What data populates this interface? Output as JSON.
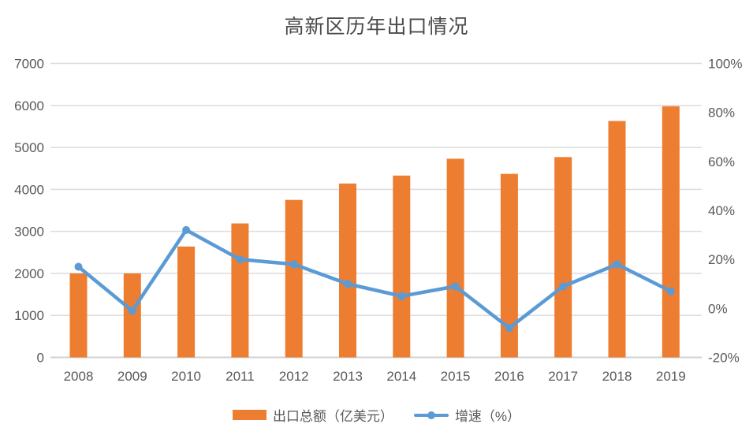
{
  "chart_data": {
    "type": "bar",
    "subtype": "combo-bar-line",
    "title": "高新区历年出口情况",
    "categories": [
      "2008",
      "2009",
      "2010",
      "2011",
      "2012",
      "2013",
      "2014",
      "2015",
      "2016",
      "2017",
      "2018",
      "2019"
    ],
    "series": [
      {
        "name": "出口总额（亿美元）",
        "type": "bar",
        "axis": "left",
        "color": "#ED7D31",
        "values": [
          2000,
          2000,
          2640,
          3190,
          3750,
          4140,
          4330,
          4730,
          4370,
          4770,
          5630,
          5980
        ]
      },
      {
        "name": "增速（%）",
        "type": "line",
        "axis": "right",
        "color": "#5B9BD5",
        "values": [
          17,
          -1,
          32,
          20,
          18,
          10,
          5,
          9,
          -8,
          9,
          18,
          7
        ]
      }
    ],
    "left_axis": {
      "min": 0,
      "max": 7000,
      "step": 1000,
      "tick_labels": [
        "0",
        "1000",
        "2000",
        "3000",
        "4000",
        "5000",
        "6000",
        "7000"
      ]
    },
    "right_axis": {
      "min": -20,
      "max": 100,
      "step": 20,
      "tick_labels": [
        "-20%",
        "0%",
        "20%",
        "40%",
        "60%",
        "80%",
        "100%"
      ]
    },
    "grid": true,
    "legend_position": "bottom"
  },
  "legend": {
    "bar_label": "出口总额（亿美元）",
    "line_label": "增速（%）"
  },
  "colors": {
    "bar": "#ED7D31",
    "line": "#5B9BD5",
    "gridline": "#DCDCDC",
    "baseline": "#D0D0D0",
    "axis_text": "#595959",
    "title_text": "#4A4A4A",
    "background": "#FFFFFF"
  }
}
